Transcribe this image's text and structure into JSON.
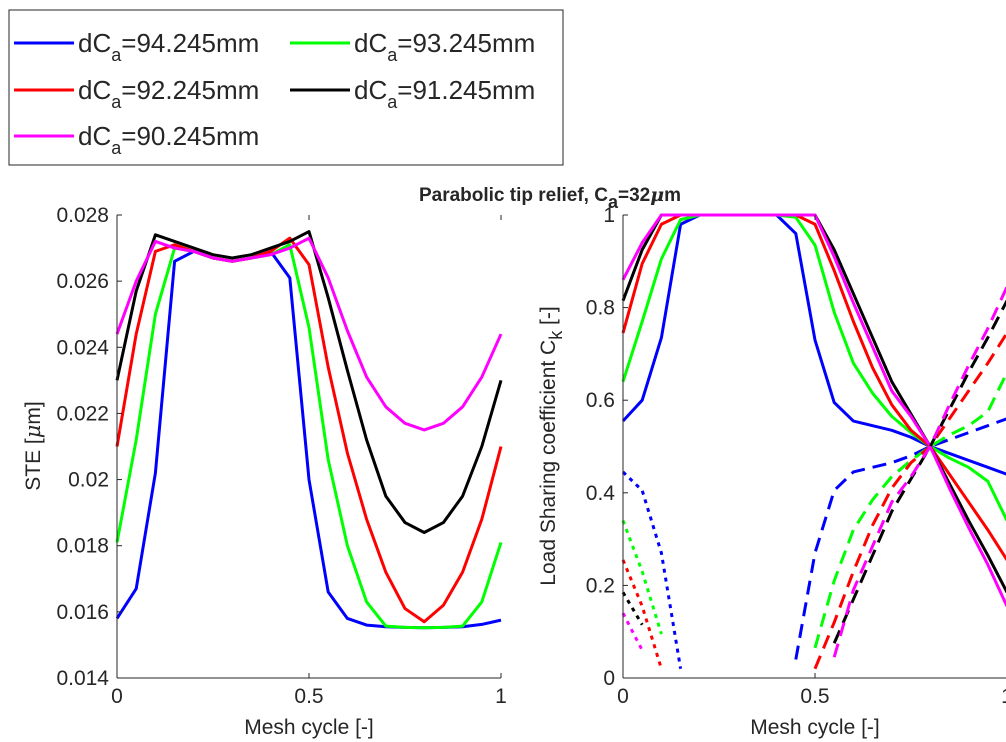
{
  "chart_data": [
    {
      "type": "line",
      "panel": "left",
      "title": "",
      "xlabel": "Mesh cycle [-]",
      "ylabel_main": "STE [",
      "ylabel_mu": "μ",
      "ylabel_tail": "m]",
      "xlim": [
        0,
        1
      ],
      "ylim": [
        0.014,
        0.028
      ],
      "xticks": [
        0,
        0.5,
        1
      ],
      "xtick_labels": [
        "0",
        "0.5",
        "1"
      ],
      "yticks": [
        0.014,
        0.016,
        0.018,
        0.02,
        0.022,
        0.024,
        0.026,
        0.028
      ],
      "ytick_labels": [
        "0.014",
        "0.016",
        "0.018",
        "0.02",
        "0.022",
        "0.024",
        "0.026",
        "0.028"
      ],
      "grid": false,
      "x": [
        0,
        0.05,
        0.1,
        0.15,
        0.2,
        0.25,
        0.3,
        0.35,
        0.4,
        0.45,
        0.5,
        0.55,
        0.6,
        0.65,
        0.7,
        0.75,
        0.8,
        0.85,
        0.9,
        0.95,
        1
      ],
      "series": [
        {
          "color": "#0000ff",
          "values": [
            0.0158,
            0.0167,
            0.0202,
            0.0266,
            0.0269,
            0.0267,
            0.0266,
            0.0267,
            0.0269,
            0.0261,
            0.02,
            0.0166,
            0.0158,
            0.0156,
            0.01555,
            0.01553,
            0.01552,
            0.01553,
            0.01555,
            0.01562,
            0.01575
          ]
        },
        {
          "color": "#00ff00",
          "values": [
            0.0181,
            0.0212,
            0.025,
            0.027,
            0.0269,
            0.0267,
            0.0266,
            0.0267,
            0.0268,
            0.0271,
            0.0246,
            0.0206,
            0.018,
            0.0163,
            0.01557,
            0.01553,
            0.01552,
            0.01553,
            0.01557,
            0.0163,
            0.0181
          ]
        },
        {
          "color": "#ff0000",
          "values": [
            0.021,
            0.0244,
            0.0269,
            0.0271,
            0.0269,
            0.0267,
            0.0266,
            0.0267,
            0.0269,
            0.0273,
            0.0265,
            0.0234,
            0.0208,
            0.0188,
            0.0172,
            0.0161,
            0.0157,
            0.0162,
            0.0172,
            0.0188,
            0.021
          ]
        },
        {
          "color": "#000000",
          "values": [
            0.023,
            0.0257,
            0.0274,
            0.0272,
            0.027,
            0.0268,
            0.0267,
            0.0268,
            0.027,
            0.0272,
            0.0275,
            0.0255,
            0.0233,
            0.0212,
            0.0195,
            0.0187,
            0.0184,
            0.0187,
            0.0195,
            0.021,
            0.023
          ]
        },
        {
          "color": "#ff00ff",
          "values": [
            0.0244,
            0.026,
            0.0272,
            0.027,
            0.0269,
            0.0267,
            0.0266,
            0.0267,
            0.0268,
            0.027,
            0.0273,
            0.0261,
            0.0245,
            0.0231,
            0.0222,
            0.0217,
            0.0215,
            0.0217,
            0.0222,
            0.0231,
            0.0244
          ]
        }
      ]
    },
    {
      "type": "line",
      "panel": "right",
      "title_main": "Parabolic tip relief, C",
      "title_sub": "a",
      "title_tail_pre": "=32",
      "title_mu": "μ",
      "title_tail": "m",
      "xlabel": "Mesh cycle [-]",
      "ylabel_main": "Load Sharing coefficient C",
      "ylabel_sub": "k",
      "ylabel_tail": " [-]",
      "xlim": [
        0,
        1
      ],
      "ylim": [
        0,
        1
      ],
      "xticks": [
        0,
        0.5,
        1
      ],
      "xtick_labels": [
        "0",
        "0.5",
        "1"
      ],
      "yticks": [
        0,
        0.2,
        0.4,
        0.6,
        0.8,
        1
      ],
      "ytick_labels": [
        "0",
        "0.2",
        "0.4",
        "0.6",
        "0.8",
        "1"
      ],
      "grid": false,
      "series": [
        {
          "color": "#0000ff",
          "style": "solid",
          "x": [
            0,
            0.05,
            0.1,
            0.15,
            0.2,
            0.25,
            0.3,
            0.35,
            0.4,
            0.45,
            0.5,
            0.55,
            0.6,
            0.65,
            0.7,
            0.75,
            0.8,
            0.85,
            0.9,
            0.95,
            1
          ],
          "values": [
            0.555,
            0.6,
            0.735,
            0.98,
            1,
            1,
            1,
            1,
            1,
            0.96,
            0.73,
            0.595,
            0.555,
            0.545,
            0.535,
            0.52,
            0.5,
            0.485,
            0.47,
            0.455,
            0.44
          ]
        },
        {
          "color": "#00ff00",
          "style": "solid",
          "x": [
            0,
            0.05,
            0.1,
            0.15,
            0.2,
            0.25,
            0.3,
            0.35,
            0.4,
            0.45,
            0.5,
            0.55,
            0.6,
            0.65,
            0.7,
            0.75,
            0.8,
            0.85,
            0.9,
            0.95,
            1
          ],
          "values": [
            0.64,
            0.77,
            0.905,
            0.99,
            1,
            1,
            1,
            1,
            1,
            0.995,
            0.935,
            0.79,
            0.68,
            0.615,
            0.565,
            0.53,
            0.5,
            0.475,
            0.455,
            0.425,
            0.34
          ]
        },
        {
          "color": "#ff0000",
          "style": "solid",
          "x": [
            0,
            0.05,
            0.1,
            0.15,
            0.2,
            0.25,
            0.3,
            0.35,
            0.4,
            0.45,
            0.5,
            0.55,
            0.6,
            0.65,
            0.7,
            0.75,
            0.8,
            0.85,
            0.9,
            0.95,
            1
          ],
          "values": [
            0.745,
            0.895,
            0.98,
            1,
            1,
            1,
            1,
            1,
            1,
            1,
            0.98,
            0.88,
            0.77,
            0.67,
            0.59,
            0.535,
            0.5,
            0.44,
            0.38,
            0.32,
            0.255
          ]
        },
        {
          "color": "#000000",
          "style": "solid",
          "x": [
            0,
            0.05,
            0.1,
            0.15,
            0.2,
            0.25,
            0.3,
            0.35,
            0.4,
            0.45,
            0.5,
            0.55,
            0.6,
            0.65,
            0.7,
            0.75,
            0.8,
            0.85,
            0.9,
            0.95,
            1
          ],
          "values": [
            0.815,
            0.925,
            1,
            1,
            1,
            1,
            1,
            1,
            1,
            1,
            1,
            0.925,
            0.83,
            0.735,
            0.64,
            0.57,
            0.5,
            0.42,
            0.34,
            0.265,
            0.185
          ]
        },
        {
          "color": "#ff00ff",
          "style": "solid",
          "x": [
            0,
            0.05,
            0.1,
            0.15,
            0.2,
            0.25,
            0.3,
            0.35,
            0.4,
            0.45,
            0.5,
            0.55,
            0.6,
            0.65,
            0.7,
            0.75,
            0.8,
            0.85,
            0.9,
            0.95,
            1
          ],
          "values": [
            0.86,
            0.94,
            1,
            1,
            1,
            1,
            1,
            1,
            1,
            1,
            1,
            0.91,
            0.81,
            0.715,
            0.62,
            0.565,
            0.5,
            0.41,
            0.325,
            0.245,
            0.155
          ]
        },
        {
          "color": "#0000ff",
          "style": "dotted",
          "x": [
            0,
            0.05,
            0.1,
            0.15
          ],
          "values": [
            0.445,
            0.405,
            0.27,
            0.02
          ]
        },
        {
          "color": "#00ff00",
          "style": "dotted",
          "x": [
            0,
            0.05,
            0.1
          ],
          "values": [
            0.34,
            0.23,
            0.095
          ]
        },
        {
          "color": "#ff0000",
          "style": "dotted",
          "x": [
            0,
            0.05,
            0.1
          ],
          "values": [
            0.255,
            0.155,
            0.02
          ]
        },
        {
          "color": "#000000",
          "style": "dotted",
          "x": [
            0,
            0.05
          ],
          "values": [
            0.185,
            0.115
          ]
        },
        {
          "color": "#ff00ff",
          "style": "dotted",
          "x": [
            0,
            0.05
          ],
          "values": [
            0.14,
            0.06
          ]
        },
        {
          "color": "#0000ff",
          "style": "dashed",
          "x": [
            0.45,
            0.5,
            0.55,
            0.6,
            0.65,
            0.7,
            0.75,
            0.8,
            0.85,
            0.9,
            0.95,
            1
          ],
          "values": [
            0.04,
            0.27,
            0.405,
            0.445,
            0.455,
            0.465,
            0.48,
            0.5,
            0.515,
            0.53,
            0.545,
            0.56
          ]
        },
        {
          "color": "#00ff00",
          "style": "dashed",
          "x": [
            0.5,
            0.55,
            0.6,
            0.65,
            0.7,
            0.75,
            0.8,
            0.85,
            0.9,
            0.95,
            1
          ],
          "values": [
            0.065,
            0.21,
            0.32,
            0.385,
            0.435,
            0.47,
            0.5,
            0.525,
            0.545,
            0.575,
            0.66
          ]
        },
        {
          "color": "#ff0000",
          "style": "dashed",
          "x": [
            0.5,
            0.55,
            0.6,
            0.65,
            0.7,
            0.75,
            0.8,
            0.85,
            0.9,
            0.95,
            1
          ],
          "values": [
            0.02,
            0.12,
            0.23,
            0.33,
            0.41,
            0.465,
            0.5,
            0.56,
            0.62,
            0.68,
            0.745
          ]
        },
        {
          "color": "#000000",
          "style": "dashed",
          "x": [
            0.55,
            0.6,
            0.65,
            0.7,
            0.75,
            0.8,
            0.85,
            0.9,
            0.95,
            1
          ],
          "values": [
            0.075,
            0.17,
            0.265,
            0.36,
            0.43,
            0.5,
            0.58,
            0.66,
            0.735,
            0.815
          ]
        },
        {
          "color": "#ff00ff",
          "style": "dashed",
          "x": [
            0.55,
            0.6,
            0.65,
            0.7,
            0.75,
            0.8,
            0.85,
            0.9,
            0.95,
            1
          ],
          "values": [
            0.045,
            0.19,
            0.285,
            0.38,
            0.435,
            0.5,
            0.59,
            0.675,
            0.755,
            0.845
          ]
        }
      ]
    }
  ],
  "legend": {
    "placement": "top-left",
    "entries": [
      {
        "color": "#0000ff",
        "main": "dC",
        "sub": "a",
        "tail": "=94.245mm"
      },
      {
        "color": "#00ff00",
        "main": "dC",
        "sub": "a",
        "tail": "=93.245mm"
      },
      {
        "color": "#ff0000",
        "main": "dC",
        "sub": "a",
        "tail": "=92.245mm"
      },
      {
        "color": "#000000",
        "main": "dC",
        "sub": "a",
        "tail": "=91.245mm"
      },
      {
        "color": "#ff00ff",
        "main": "dC",
        "sub": "a",
        "tail": "=90.245mm"
      }
    ]
  }
}
